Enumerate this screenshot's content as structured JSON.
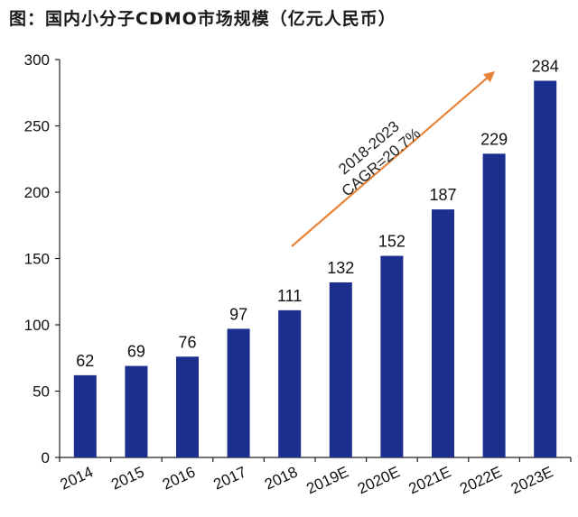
{
  "title": "图：国内小分子CDMO市场规模（亿元人民币）",
  "chart_data": {
    "type": "bar",
    "title": "图：国内小分子CDMO市场规模（亿元人民币）",
    "categories": [
      "2014",
      "2015",
      "2016",
      "2017",
      "2018",
      "2019E",
      "2020E",
      "2021E",
      "2022E",
      "2023E"
    ],
    "values": [
      62,
      69,
      76,
      97,
      111,
      132,
      152,
      187,
      229,
      284
    ],
    "ylim": [
      0,
      300
    ],
    "yticks": [
      0,
      50,
      100,
      150,
      200,
      250,
      300
    ],
    "xlabel": "",
    "ylabel": "",
    "grid": false,
    "legend": "none",
    "bar_color": "#1c2f8f",
    "annotation": {
      "lines": [
        "2018-2023",
        "CAGR=20.7%"
      ],
      "arrow_color": "#e8843a"
    }
  }
}
